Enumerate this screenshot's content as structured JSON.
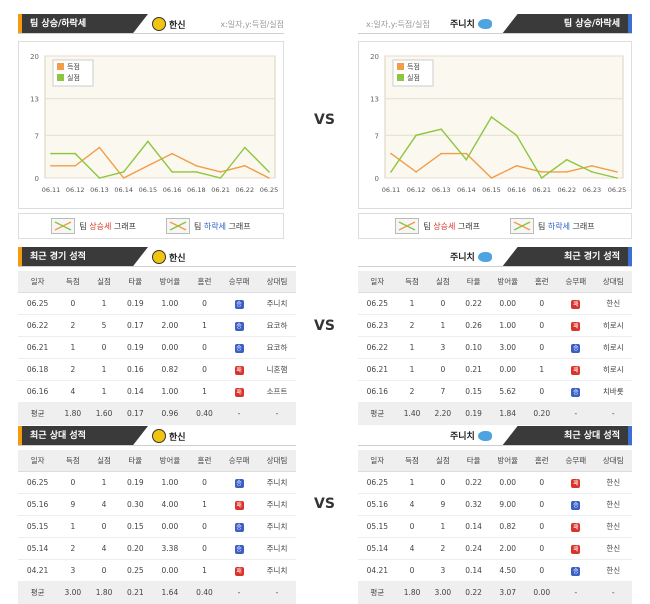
{
  "vs_label": "VS",
  "trend": {
    "left_title": "팀 상승/하락세",
    "right_title": "팀 상승/하락세",
    "left_team": "한신",
    "right_team": "주니치",
    "axis_note": "x:일자,y:득점/실점",
    "legend_up_pre": "팀 ",
    "legend_up_word": "상승세",
    "legend_dn_word": "하락세",
    "legend_post": " 그래프",
    "series_score": "득점",
    "series_allow": "실점"
  },
  "chart_data": [
    {
      "type": "line",
      "x": [
        "06.11",
        "06.12",
        "06.13",
        "06.14",
        "06.15",
        "06.16",
        "06.18",
        "06.21",
        "06.22",
        "06.25"
      ],
      "yticks": [
        0,
        7,
        13,
        20
      ],
      "ylim": [
        0,
        20
      ],
      "series": [
        {
          "name": "득점",
          "color": "#f39c4a",
          "values": [
            2,
            2,
            5,
            0,
            2,
            4,
            2,
            1,
            2,
            0
          ]
        },
        {
          "name": "실점",
          "color": "#8cc63f",
          "values": [
            4,
            4,
            0,
            1,
            6,
            1,
            1,
            0,
            5,
            1
          ]
        }
      ]
    },
    {
      "type": "line",
      "x": [
        "06.11",
        "06.12",
        "06.13",
        "06.14",
        "06.15",
        "06.16",
        "06.21",
        "06.22",
        "06.23",
        "06.25"
      ],
      "yticks": [
        0,
        7,
        13,
        20
      ],
      "ylim": [
        0,
        20
      ],
      "series": [
        {
          "name": "득점",
          "color": "#f39c4a",
          "values": [
            4,
            1,
            4,
            4,
            0,
            2,
            1,
            1,
            2,
            1
          ]
        },
        {
          "name": "실점",
          "color": "#8cc63f",
          "values": [
            1,
            7,
            8,
            3,
            10,
            7,
            0,
            3,
            1,
            0
          ]
        }
      ]
    }
  ],
  "recent": {
    "left_title": "최근 경기 성적",
    "right_title": "최근 경기 성적",
    "left_team": "한신",
    "right_team": "주니치",
    "headers": [
      "일자",
      "득점",
      "실점",
      "타율",
      "방어율",
      "홈런",
      "승무패",
      "상대팀"
    ],
    "left_rows": [
      [
        "06.25",
        "0",
        "1",
        "0.19",
        "1.00",
        "0",
        "승",
        "주니치"
      ],
      [
        "06.22",
        "2",
        "5",
        "0.17",
        "2.00",
        "1",
        "승",
        "요코하"
      ],
      [
        "06.21",
        "1",
        "0",
        "0.19",
        "0.00",
        "0",
        "승",
        "요코하"
      ],
      [
        "06.18",
        "2",
        "1",
        "0.16",
        "0.82",
        "0",
        "패",
        "니혼햄"
      ],
      [
        "06.16",
        "4",
        "1",
        "0.14",
        "1.00",
        "1",
        "패",
        "소프트"
      ]
    ],
    "left_avg": [
      "평균",
      "1.80",
      "1.60",
      "0.17",
      "0.96",
      "0.40",
      "-",
      "-"
    ],
    "right_rows": [
      [
        "06.25",
        "1",
        "0",
        "0.22",
        "0.00",
        "0",
        "패",
        "한신"
      ],
      [
        "06.23",
        "2",
        "1",
        "0.26",
        "1.00",
        "0",
        "패",
        "히로시"
      ],
      [
        "06.22",
        "1",
        "3",
        "0.10",
        "3.00",
        "0",
        "승",
        "히로시"
      ],
      [
        "06.21",
        "1",
        "0",
        "0.21",
        "0.00",
        "1",
        "패",
        "히로시"
      ],
      [
        "06.16",
        "2",
        "7",
        "0.15",
        "5.62",
        "0",
        "승",
        "치바롯"
      ]
    ],
    "right_avg": [
      "평균",
      "1.40",
      "2.20",
      "0.19",
      "1.84",
      "0.20",
      "-",
      "-"
    ]
  },
  "h2h": {
    "left_title": "최근 상대 성적",
    "right_title": "최근 상대 성적",
    "left_team": "한신",
    "right_team": "주니치",
    "headers": [
      "일자",
      "득점",
      "실점",
      "타율",
      "방어율",
      "홈런",
      "승무패",
      "상대팀"
    ],
    "left_rows": [
      [
        "06.25",
        "0",
        "1",
        "0.19",
        "1.00",
        "0",
        "승",
        "주니치"
      ],
      [
        "05.16",
        "9",
        "4",
        "0.30",
        "4.00",
        "1",
        "패",
        "주니치"
      ],
      [
        "05.15",
        "1",
        "0",
        "0.15",
        "0.00",
        "0",
        "승",
        "주니치"
      ],
      [
        "05.14",
        "2",
        "4",
        "0.20",
        "3.38",
        "0",
        "승",
        "주니치"
      ],
      [
        "04.21",
        "3",
        "0",
        "0.25",
        "0.00",
        "1",
        "패",
        "주니치"
      ]
    ],
    "left_avg": [
      "평균",
      "3.00",
      "1.80",
      "0.21",
      "1.64",
      "0.40",
      "-",
      "-"
    ],
    "right_rows": [
      [
        "06.25",
        "1",
        "0",
        "0.22",
        "0.00",
        "0",
        "패",
        "한신"
      ],
      [
        "05.16",
        "4",
        "9",
        "0.32",
        "9.00",
        "0",
        "승",
        "한신"
      ],
      [
        "05.15",
        "0",
        "1",
        "0.14",
        "0.82",
        "0",
        "패",
        "한신"
      ],
      [
        "05.14",
        "4",
        "2",
        "0.24",
        "2.00",
        "0",
        "패",
        "한신"
      ],
      [
        "04.21",
        "0",
        "3",
        "0.14",
        "4.50",
        "0",
        "승",
        "한신"
      ]
    ],
    "right_avg": [
      "평균",
      "1.80",
      "3.00",
      "0.22",
      "3.07",
      "0.00",
      "-",
      "-"
    ]
  }
}
